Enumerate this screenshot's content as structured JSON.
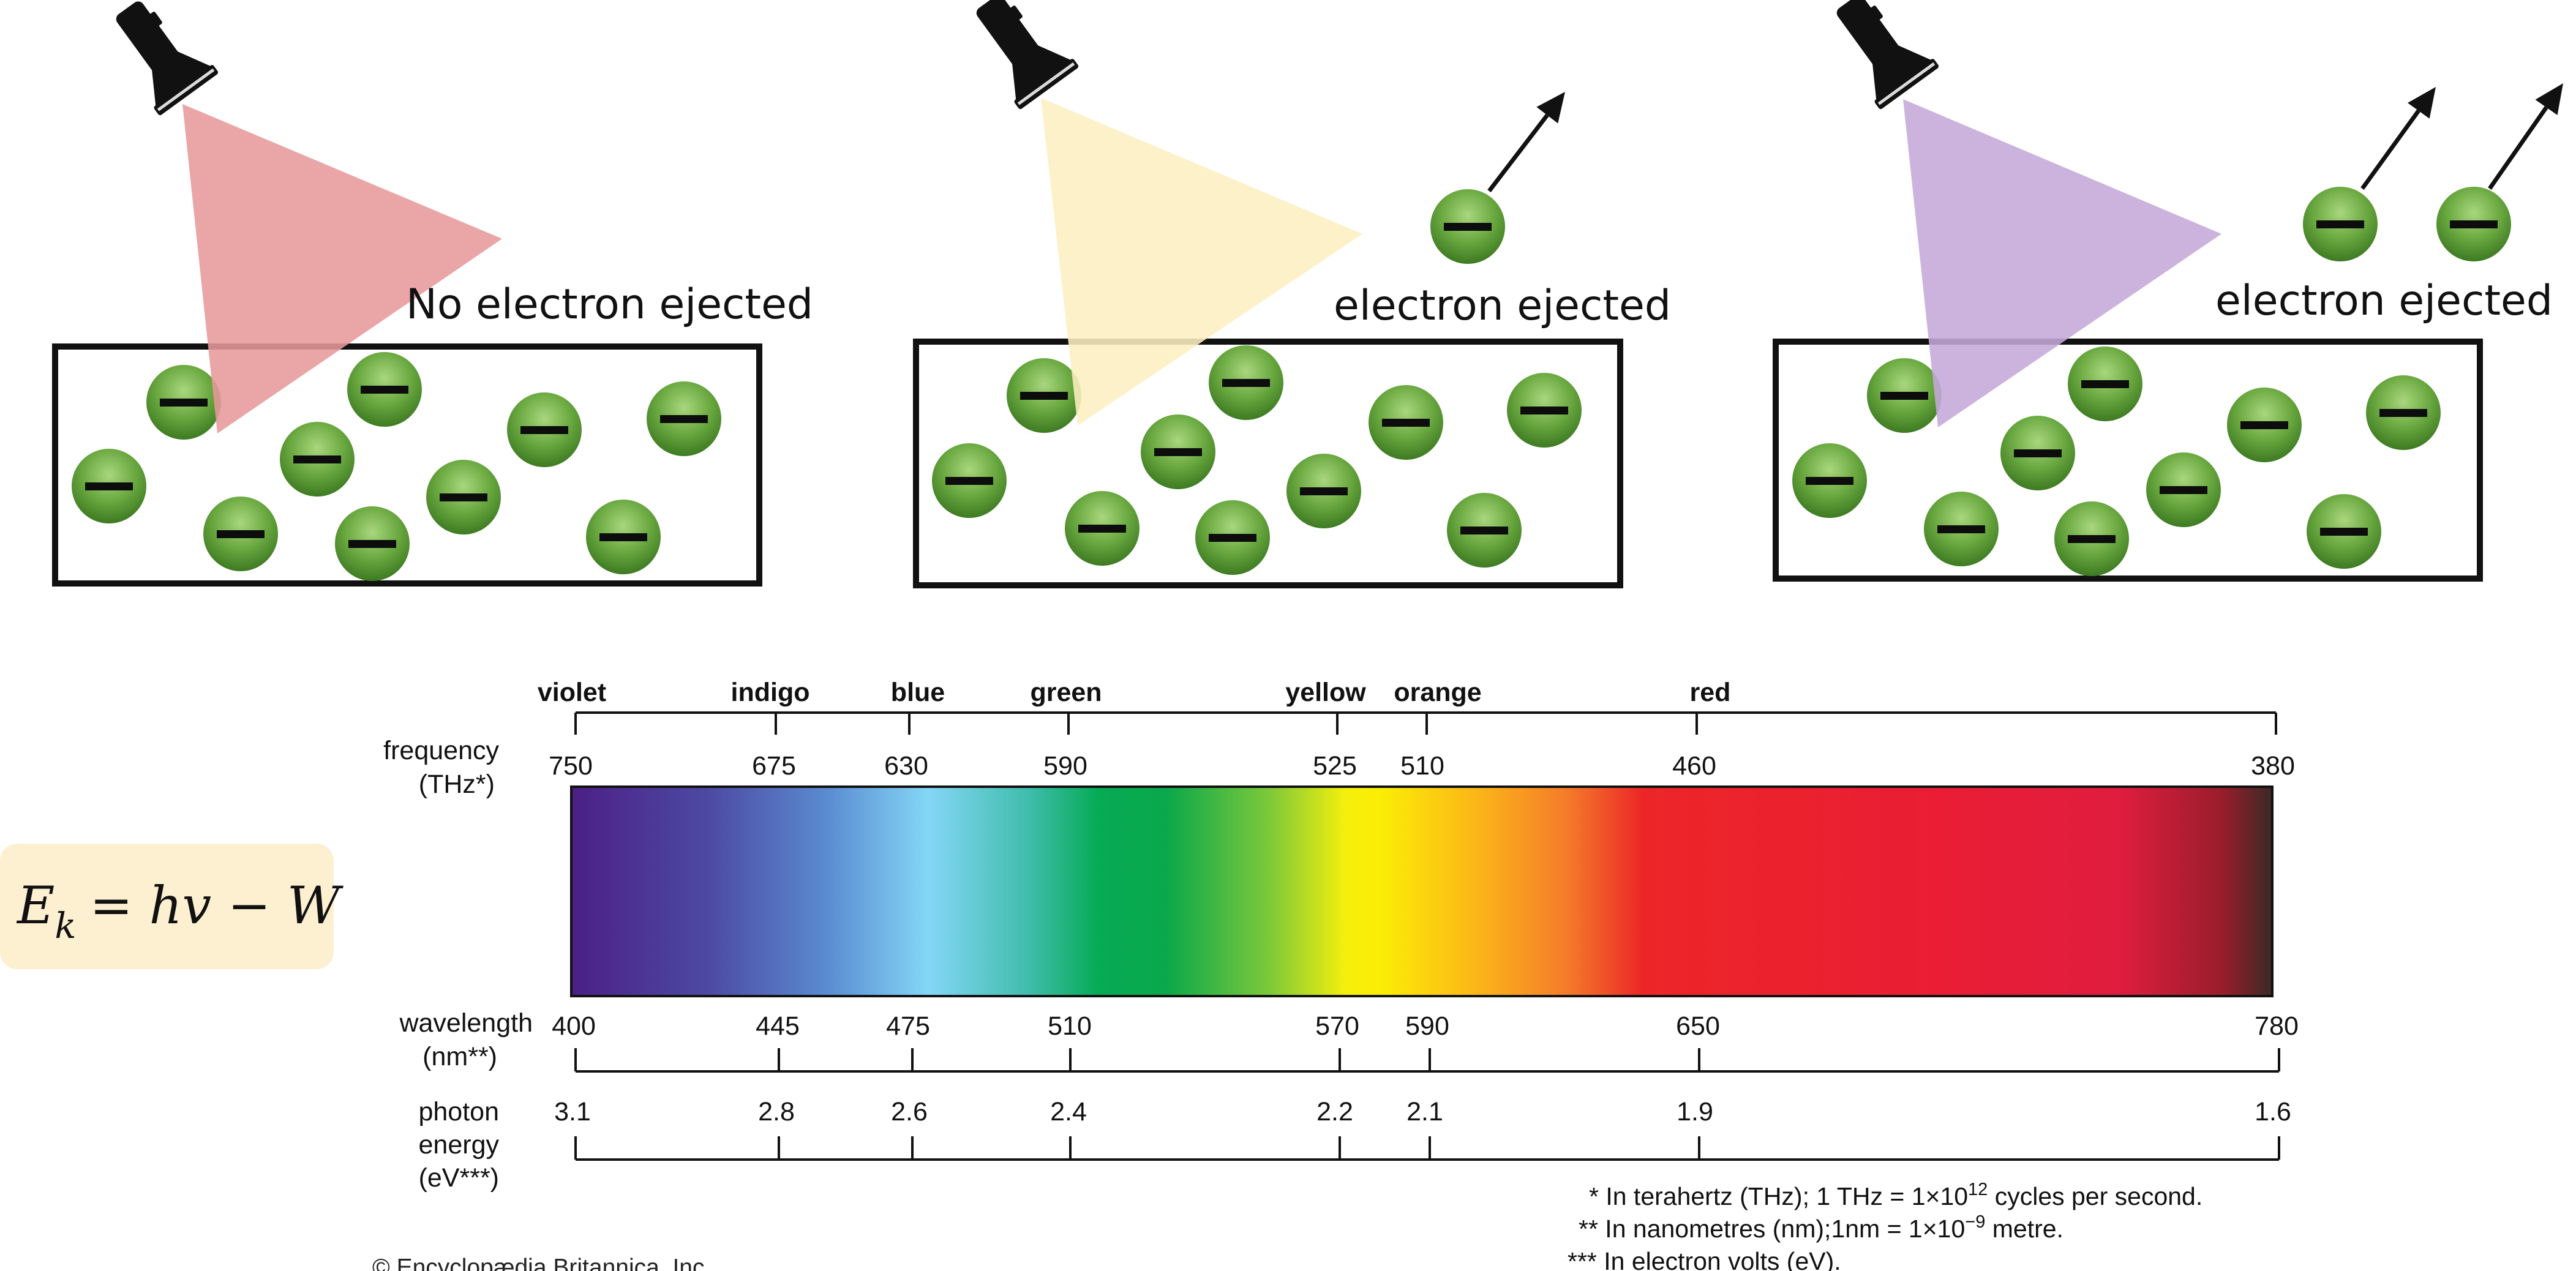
{
  "panels": [
    {
      "caption": "No electron ejected",
      "light_color": "#e7999b",
      "ejected_count": 0
    },
    {
      "caption": "electron ejected",
      "light_color": "#fcefc0",
      "ejected_count": 1
    },
    {
      "caption": "electron ejected",
      "light_color": "#c5a9d8",
      "ejected_count": 2
    }
  ],
  "electron_charge_symbol": "minus-sign",
  "formula": {
    "text": "Ek = hv − W",
    "lhs": "E",
    "lhs_sub": "k",
    "rhs": "= hv − W",
    "background": "#fdf0d0"
  },
  "spectrum": {
    "colors": [
      "violet",
      "indigo",
      "blue",
      "green",
      "yellow",
      "orange",
      "red"
    ],
    "frequency": {
      "label_line1": "frequency",
      "label_line2": "(THz*)",
      "ticks": [
        "750",
        "675",
        "630",
        "590",
        "525",
        "510",
        "460",
        "380"
      ]
    },
    "wavelength": {
      "label_line1": "wavelength",
      "label_line2": "(nm**)",
      "ticks": [
        "400",
        "445",
        "475",
        "510",
        "570",
        "590",
        "650",
        "780"
      ]
    },
    "photon_energy": {
      "label_line1": "photon",
      "label_line2": "energy",
      "label_line3": "(eV***)",
      "ticks": [
        "3.1",
        "2.8",
        "2.6",
        "2.4",
        "2.2",
        "2.1",
        "1.9",
        "1.6"
      ]
    }
  },
  "notes": {
    "thz_prefix": "* In terahertz (THz); 1 THz = 1×10",
    "thz_exp": "12",
    "thz_suffix": " cycles per second.",
    "nm_prefix": "** In nanometres (nm);1nm = 1×10",
    "nm_exp": "−9",
    "nm_suffix": " metre.",
    "ev": "*** In electron volts (eV)."
  },
  "credit": "© Encyclopædia Britannica, Inc."
}
